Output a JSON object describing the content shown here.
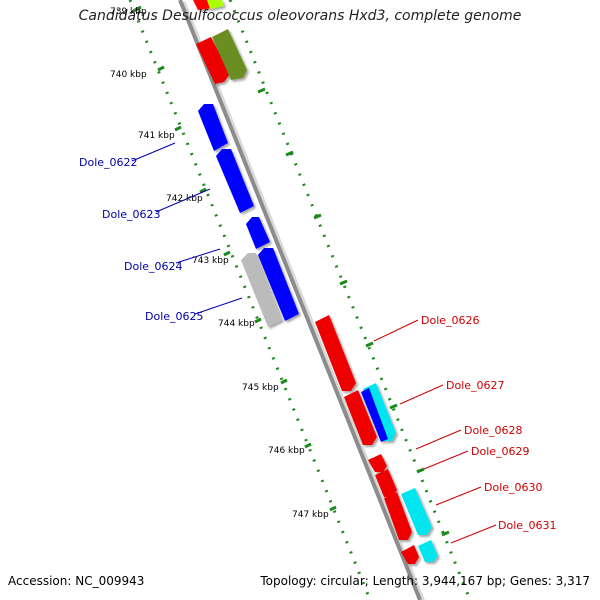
{
  "title": "Candidatus Desulfococcus oleovorans Hxd3, complete genome",
  "accession_text": "Accession: NC_009943",
  "summary_text": "Topology: circular; Length: 3,944,167 bp; Genes: 3,317",
  "colors": {
    "backbone": "#909090",
    "tick": "#1a8a1a",
    "forward_label": "#cc0000",
    "reverse_label": "#0000aa"
  },
  "kbp_labels": [
    "739 kbp",
    "740 kbp",
    "741 kbp",
    "742 kbp",
    "743 kbp",
    "744 kbp",
    "745 kbp",
    "746 kbp",
    "747 kbp"
  ],
  "gene_labels": [
    {
      "name": "Dole_0622",
      "strand": "reverse"
    },
    {
      "name": "Dole_0623",
      "strand": "reverse"
    },
    {
      "name": "Dole_0624",
      "strand": "reverse"
    },
    {
      "name": "Dole_0625",
      "strand": "reverse"
    },
    {
      "name": "Dole_0626",
      "strand": "forward"
    },
    {
      "name": "Dole_0627",
      "strand": "forward"
    },
    {
      "name": "Dole_0628",
      "strand": "forward"
    },
    {
      "name": "Dole_0629",
      "strand": "forward"
    },
    {
      "name": "Dole_0630",
      "strand": "forward"
    },
    {
      "name": "Dole_0631",
      "strand": "forward"
    }
  ]
}
